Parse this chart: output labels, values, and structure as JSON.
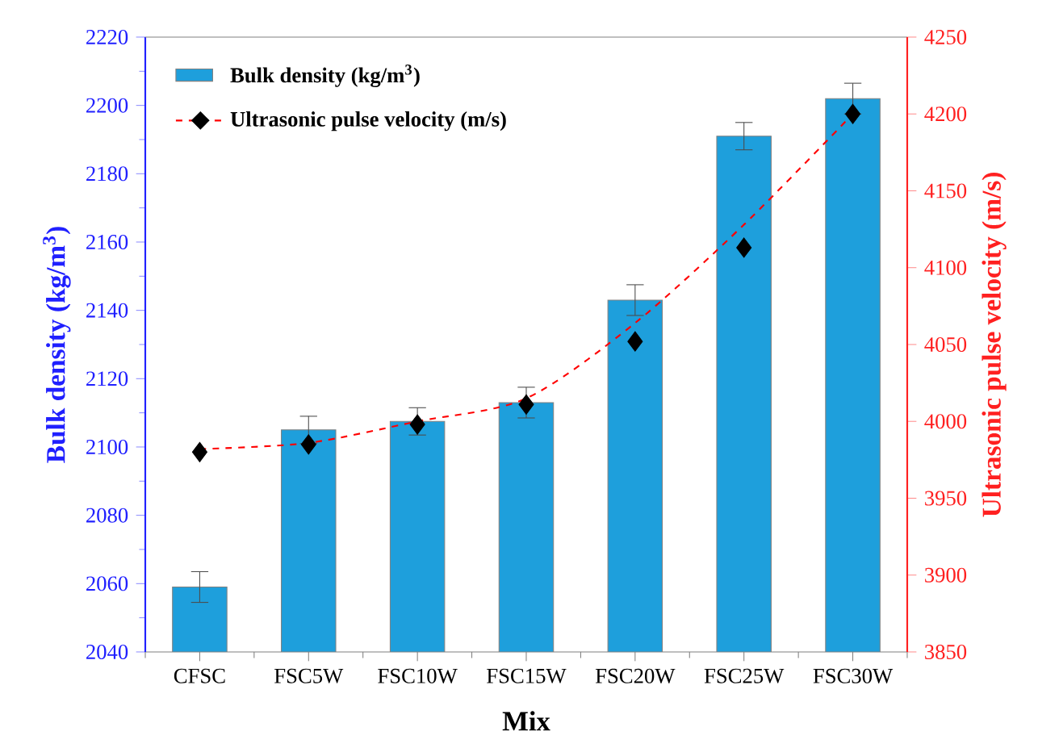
{
  "chart_data": {
    "type": "bar",
    "xlabel": "Mix",
    "ylabel": "Bulk density (kg/m$^{3}$)",
    "y2label": "Ultrasonic pulse velocity (m/s)",
    "categories": [
      "CFSC",
      "FSC5W",
      "FSC10W",
      "FSC15W",
      "FSC20W",
      "FSC25W",
      "FSC30W"
    ],
    "series": [
      {
        "name": "Bulk density (kg/m$^{3}$)",
        "color": "#1e9fdc",
        "values": [
          2059,
          2105,
          2107.5,
          2113,
          2143,
          2191,
          2202
        ],
        "errors": [
          4.5,
          4,
          4,
          4.5,
          4.5,
          4,
          4.5
        ]
      },
      {
        "name": "Ultrasonic pulse velocity (m/s)",
        "type": "scatter",
        "axis": "y2",
        "color": "#000000",
        "marker": "diamond",
        "values": [
          3980,
          3985,
          3998,
          4011,
          4052,
          4113,
          4200
        ]
      },
      {
        "type": "line",
        "axis": "y2",
        "color": "#ff0000",
        "line_style": "dashed",
        "values": [
          3982,
          3986,
          4000,
          4015,
          4064,
          4128,
          4200
        ]
      }
    ],
    "ylim": [
      2040,
      2220
    ],
    "yticks": [
      2040,
      2060,
      2080,
      2100,
      2120,
      2140,
      2160,
      2180,
      2200,
      2220
    ],
    "y2lim": [
      3850,
      4250
    ],
    "y2ticks": [
      3850,
      3900,
      3950,
      4000,
      4050,
      4100,
      4150,
      4200,
      4250
    ],
    "legend": "top left",
    "grid": false
  }
}
